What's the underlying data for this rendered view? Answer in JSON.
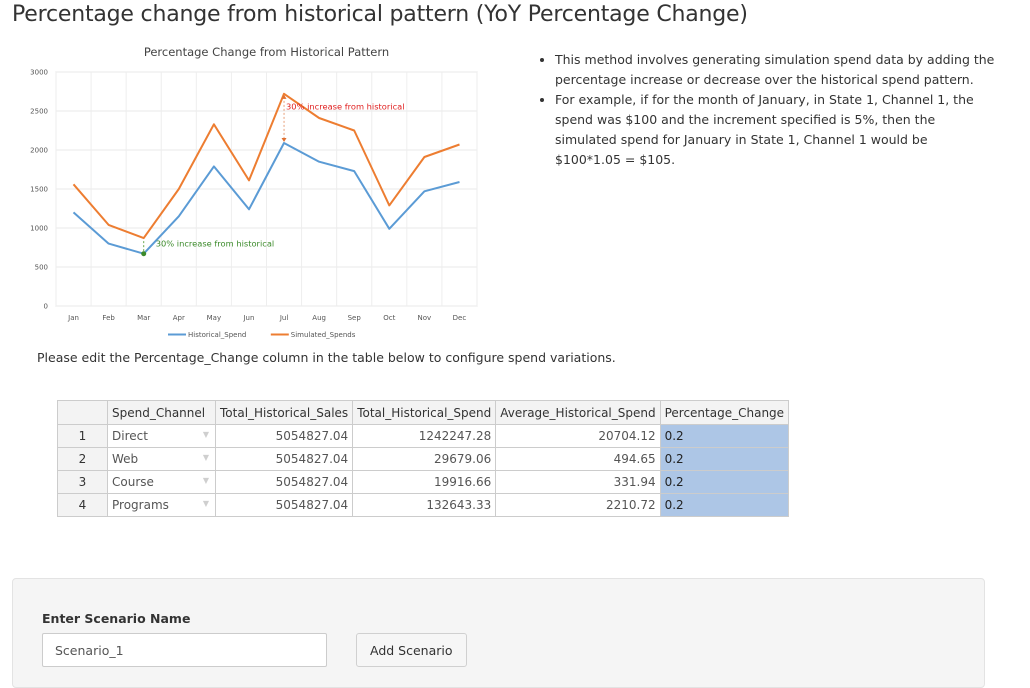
{
  "page": {
    "title": "Percentage change from historical pattern (YoY Percentage Change)",
    "instruction": "Please edit the Percentage_Change column in the table below to configure spend variations."
  },
  "notes": [
    "This method involves generating simulation spend data by adding the percentage increase or decrease over the historical spend pattern.",
    "For example, if for the month of January, in State 1, Channel 1, the spend was $100 and the increment specified is 5%, then the simulated spend for January in State 1, Channel 1 would be $100*1.05 = $105."
  ],
  "chart_data": {
    "type": "line",
    "title": "Percentage Change from Historical Pattern",
    "categories": [
      "Jan",
      "Feb",
      "Mar",
      "Apr",
      "May",
      "Jun",
      "Jul",
      "Aug",
      "Sep",
      "Oct",
      "Nov",
      "Dec"
    ],
    "ylim": [
      0,
      3000
    ],
    "y_ticks": [
      0,
      500,
      1000,
      1500,
      2000,
      2500,
      3000
    ],
    "grid": true,
    "legend_position": "bottom",
    "series": [
      {
        "name": "Historical_Spend",
        "color": "#5b9bd5",
        "values": [
          1200,
          800,
          670,
          1150,
          1790,
          1240,
          2090,
          1850,
          1730,
          990,
          1470,
          1590
        ]
      },
      {
        "name": "Simulated_Spends",
        "color": "#ed7d31",
        "values": [
          1560,
          1040,
          870,
          1500,
          2330,
          1610,
          2720,
          2410,
          2250,
          1290,
          1910,
          2070
        ]
      }
    ],
    "annotations": [
      {
        "text": "30% increase from historical",
        "color": "#e02020",
        "at": "Jul"
      },
      {
        "text": "30% increase from historical",
        "color": "#3b8a2a",
        "at": "Mar"
      }
    ]
  },
  "table": {
    "columns": [
      "",
      "Spend_Channel",
      "Total_Historical_Sales",
      "Total_Historical_Spend",
      "Average_Historical_Spend",
      "Percentage_Change"
    ],
    "rows": [
      {
        "index": "1",
        "channel": "Direct",
        "sales": "5054827.04",
        "spend": "1242247.28",
        "avg": "20704.12",
        "pct": "0.2"
      },
      {
        "index": "2",
        "channel": "Web",
        "sales": "5054827.04",
        "spend": "29679.06",
        "avg": "494.65",
        "pct": "0.2"
      },
      {
        "index": "3",
        "channel": "Course",
        "sales": "5054827.04",
        "spend": "19916.66",
        "avg": "331.94",
        "pct": "0.2"
      },
      {
        "index": "4",
        "channel": "Programs",
        "sales": "5054827.04",
        "spend": "132643.33",
        "avg": "2210.72",
        "pct": "0.2"
      }
    ],
    "dropdown_icon": "triangle-down-icon",
    "edit_color": "#adc6e6"
  },
  "scenario": {
    "label": "Enter Scenario Name",
    "value": "Scenario_1",
    "button_label": "Add Scenario"
  }
}
